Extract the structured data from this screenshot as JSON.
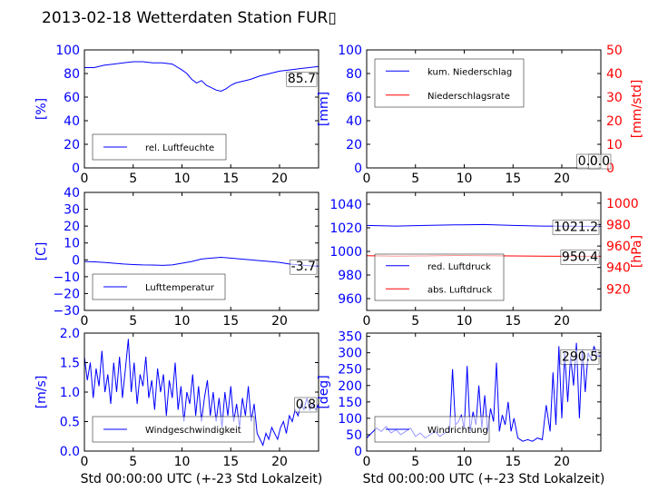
{
  "figure_title": "2013-02-18 Wetterdaten Station FUR▯",
  "colors": {
    "left_axis": "#0000ff",
    "right_axis": "#ff0000",
    "frame": "#000000"
  },
  "chart_data": [
    {
      "id": "humidity",
      "type": "line",
      "xlim": [
        0,
        24
      ],
      "xticks": [
        0,
        5,
        10,
        15,
        20
      ],
      "ylim": [
        0,
        100
      ],
      "yticks": [
        0,
        20,
        40,
        60,
        80,
        100
      ],
      "ylabel": "[%]",
      "last_value_label": "85.7",
      "legend_position": "lower-left",
      "series": [
        {
          "name": "rel. Luftfeuchte",
          "color": "#0000ff",
          "x": [
            0,
            1,
            2,
            3,
            4,
            5,
            6,
            7,
            8,
            9,
            10,
            10.5,
            11,
            11.5,
            12,
            12.5,
            13,
            13.5,
            14,
            14.5,
            15,
            15.5,
            16,
            17,
            18,
            19,
            20,
            21,
            22,
            23,
            24
          ],
          "y": [
            85,
            85,
            87,
            88,
            89,
            90,
            90,
            89,
            89,
            88,
            83,
            80,
            75,
            72,
            74,
            70,
            68,
            66,
            65,
            67,
            70,
            72,
            73,
            75,
            78,
            80,
            82,
            83,
            84,
            85,
            86
          ]
        }
      ]
    },
    {
      "id": "precip",
      "type": "line",
      "xlim": [
        0,
        24
      ],
      "xticks": [
        0,
        5,
        10,
        15,
        20
      ],
      "ylim": [
        0,
        100
      ],
      "yticks": [
        0,
        20,
        40,
        60,
        80,
        100
      ],
      "ylabel": "[mm]",
      "y2lim": [
        0,
        50
      ],
      "y2ticks": [
        0,
        10,
        20,
        30,
        40,
        50
      ],
      "y2label": "[mm/std]",
      "last_value_labels": [
        "0.0",
        "0.0"
      ],
      "legend_position": "upper-left",
      "series": [
        {
          "name": "kum. Niederschlag",
          "color": "#0000ff",
          "axis": "left",
          "x": [
            0,
            24
          ],
          "y": [
            0,
            0
          ]
        },
        {
          "name": "Niederschlagsrate",
          "color": "#ff0000",
          "axis": "right",
          "x": [
            0,
            24
          ],
          "y": [
            0,
            0
          ]
        }
      ]
    },
    {
      "id": "temperature",
      "type": "line",
      "xlim": [
        0,
        24
      ],
      "xticks": [
        0,
        5,
        10,
        15,
        20
      ],
      "ylim": [
        -30,
        40
      ],
      "yticks": [
        -30,
        -20,
        -10,
        0,
        10,
        20,
        30,
        40
      ],
      "ylabel": "[C]",
      "last_value_label": "-3.7",
      "legend_position": "lower-left",
      "series": [
        {
          "name": "Lufttemperatur",
          "color": "#0000ff",
          "x": [
            0,
            1,
            2,
            3,
            4,
            5,
            6,
            7,
            8,
            9,
            10,
            11,
            12,
            13,
            14,
            15,
            16,
            17,
            18,
            19,
            20,
            21,
            22,
            23,
            24
          ],
          "y": [
            -1.0,
            -1.2,
            -1.5,
            -2.0,
            -2.5,
            -2.8,
            -3.0,
            -3.1,
            -3.3,
            -3.0,
            -2.0,
            -1.0,
            0.5,
            1.0,
            1.5,
            1.0,
            0.5,
            0.0,
            -0.5,
            -1.0,
            -1.5,
            -2.5,
            -3.0,
            -3.5,
            -3.7
          ]
        }
      ]
    },
    {
      "id": "pressure",
      "type": "line",
      "xlim": [
        0,
        24
      ],
      "xticks": [
        0,
        5,
        10,
        15,
        20
      ],
      "ylim": [
        950,
        1050
      ],
      "yticks": [
        960,
        980,
        1000,
        1020,
        1040
      ],
      "ylabel": "",
      "y2lim": [
        900,
        1010
      ],
      "y2ticks": [
        920,
        940,
        960,
        980,
        1000
      ],
      "y2label": "[hPa]",
      "last_value_labels": [
        "1021.2",
        "950.4"
      ],
      "legend_position": "lower-left",
      "series": [
        {
          "name": "red. Luftdruck",
          "color": "#0000ff",
          "axis": "left",
          "x": [
            0,
            3,
            6,
            9,
            12,
            15,
            18,
            21,
            24
          ],
          "y": [
            1022.0,
            1021.5,
            1022.0,
            1022.5,
            1022.8,
            1022.0,
            1021.5,
            1021.3,
            1021.2
          ]
        },
        {
          "name": "abs. Luftdruck",
          "color": "#ff0000",
          "axis": "right",
          "x": [
            0,
            3,
            6,
            9,
            12,
            15,
            18,
            21,
            24
          ],
          "y": [
            951.0,
            950.5,
            950.8,
            951.2,
            951.0,
            950.8,
            950.5,
            950.4,
            950.4
          ]
        }
      ]
    },
    {
      "id": "wind_speed",
      "type": "line",
      "xlim": [
        0,
        24
      ],
      "xticks": [
        0,
        5,
        10,
        15,
        20
      ],
      "ylim": [
        0,
        2
      ],
      "yticks": [
        0.0,
        0.5,
        1.0,
        1.5,
        2.0
      ],
      "ylabel": "[m/s]",
      "xlabel": "Std 00:00:00 UTC (+-23 Std Lokalzeit)",
      "last_value_label": "0.8",
      "legend_position": "lower-left",
      "series": [
        {
          "name": "Windgeschwindigkeit",
          "color": "#0000ff",
          "x": [
            0,
            0.3,
            0.6,
            0.9,
            1.2,
            1.5,
            1.8,
            2.1,
            2.4,
            2.7,
            3.0,
            3.3,
            3.6,
            3.9,
            4.2,
            4.5,
            4.8,
            5.1,
            5.4,
            5.7,
            6.0,
            6.3,
            6.6,
            6.9,
            7.2,
            7.5,
            7.8,
            8.1,
            8.4,
            8.7,
            9.0,
            9.3,
            9.6,
            9.9,
            10.2,
            10.5,
            10.8,
            11.1,
            11.4,
            11.7,
            12.0,
            12.3,
            12.6,
            12.9,
            13.2,
            13.5,
            13.8,
            14.1,
            14.4,
            14.7,
            15.0,
            15.3,
            15.6,
            15.9,
            16.2,
            16.5,
            16.8,
            17.1,
            17.4,
            17.7,
            18.0,
            18.3,
            18.6,
            18.9,
            19.2,
            19.5,
            19.8,
            20.1,
            20.4,
            20.7,
            21.0,
            21.3,
            21.6,
            21.9,
            22.2,
            22.5,
            22.8,
            23.1,
            23.4,
            23.7,
            24.0
          ],
          "y": [
            1.6,
            1.2,
            1.5,
            0.9,
            1.4,
            1.1,
            1.7,
            1.0,
            1.3,
            0.8,
            1.5,
            1.0,
            1.6,
            0.9,
            1.4,
            1.9,
            1.0,
            1.5,
            0.8,
            1.3,
            1.1,
            1.6,
            0.9,
            1.2,
            0.7,
            1.4,
            1.0,
            1.3,
            0.6,
            1.2,
            0.9,
            1.5,
            0.7,
            1.1,
            0.5,
            1.0,
            0.8,
            1.3,
            0.6,
            1.1,
            0.5,
            0.9,
            1.2,
            0.6,
            1.0,
            0.5,
            0.9,
            0.4,
            1.0,
            0.6,
            1.1,
            0.5,
            0.8,
            0.4,
            0.9,
            0.6,
            1.1,
            0.5,
            0.8,
            0.3,
            0.2,
            0.1,
            0.3,
            0.2,
            0.4,
            0.3,
            0.2,
            0.4,
            0.5,
            0.3,
            0.6,
            0.5,
            0.7,
            0.6,
            0.8,
            0.7,
            0.9,
            0.7,
            0.8,
            0.7,
            0.8
          ]
        }
      ]
    },
    {
      "id": "wind_dir",
      "type": "line",
      "xlim": [
        0,
        24
      ],
      "xticks": [
        0,
        5,
        10,
        15,
        20
      ],
      "ylim": [
        0,
        360
      ],
      "yticks": [
        0,
        50,
        100,
        150,
        200,
        250,
        300,
        350
      ],
      "ylabel": "[deg]",
      "xlabel": "Std 00:00:00 UTC (+-23 Std Lokalzeit)",
      "last_value_label": "290.5",
      "legend_position": "lower-left",
      "series": [
        {
          "name": "Windrichtung",
          "color": "#0000ff",
          "x": [
            0,
            0.5,
            1.0,
            1.5,
            2.0,
            2.5,
            3.0,
            3.5,
            4.0,
            4.5,
            5.0,
            5.5,
            6.0,
            6.5,
            7.0,
            7.5,
            8.0,
            8.5,
            8.8,
            9.1,
            9.4,
            9.7,
            10.0,
            10.3,
            10.6,
            10.9,
            11.2,
            11.5,
            11.8,
            12.1,
            12.4,
            12.7,
            13.0,
            13.3,
            13.6,
            13.9,
            14.2,
            14.5,
            14.8,
            15.1,
            15.5,
            16.0,
            16.5,
            17.0,
            17.5,
            18.0,
            18.4,
            18.8,
            19.1,
            19.4,
            19.7,
            20.0,
            20.3,
            20.6,
            20.9,
            21.2,
            21.5,
            21.8,
            22.1,
            22.4,
            22.7,
            23.0,
            23.3,
            23.6,
            24.0
          ],
          "y": [
            40,
            55,
            70,
            60,
            75,
            55,
            65,
            50,
            60,
            70,
            45,
            55,
            40,
            50,
            60,
            45,
            55,
            60,
            250,
            80,
            90,
            110,
            70,
            260,
            60,
            120,
            80,
            200,
            70,
            170,
            60,
            130,
            90,
            270,
            60,
            110,
            80,
            150,
            60,
            100,
            40,
            30,
            35,
            30,
            40,
            35,
            140,
            60,
            240,
            80,
            320,
            100,
            300,
            150,
            290,
            200,
            330,
            100,
            310,
            180,
            300,
            280,
            320,
            290,
            290
          ]
        }
      ]
    }
  ]
}
